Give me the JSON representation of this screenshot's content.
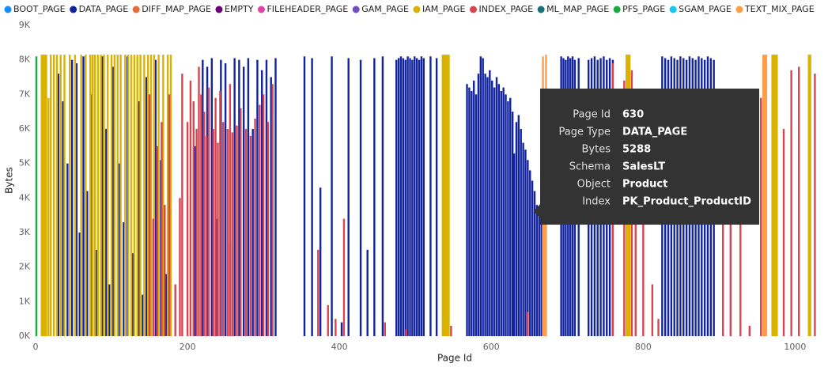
{
  "chart_data": {
    "type": "bar",
    "xlabel": "Page Id",
    "ylabel": "Bytes",
    "xlim": [
      0,
      1036
    ],
    "ylim": [
      0,
      9000
    ],
    "xticks": [
      0,
      200,
      400,
      600,
      800,
      1000
    ],
    "yticks": [
      {
        "value": 0,
        "label": "0K"
      },
      {
        "value": 1000,
        "label": "1K"
      },
      {
        "value": 2000,
        "label": "2K"
      },
      {
        "value": 3000,
        "label": "3K"
      },
      {
        "value": 4000,
        "label": "4K"
      },
      {
        "value": 5000,
        "label": "5K"
      },
      {
        "value": 6000,
        "label": "6K"
      },
      {
        "value": 7000,
        "label": "7K"
      },
      {
        "value": 8000,
        "label": "8K"
      },
      {
        "value": 9000,
        "label": "9K"
      }
    ],
    "grid": false,
    "series": [
      {
        "name": "BOOT_PAGE",
        "color": "#118DFF",
        "x": [],
        "values": []
      },
      {
        "name": "DATA_PAGE",
        "color": "#12239E",
        "x": [
          30,
          36,
          42,
          48,
          54,
          58,
          63,
          68,
          74,
          80,
          88,
          93,
          97,
          102,
          110,
          116,
          121,
          128,
          136,
          141,
          146,
          150,
          158,
          165,
          172,
          210,
          220,
          226,
          232,
          238,
          244,
          250,
          256,
          262,
          268,
          274,
          280,
          286,
          292,
          298,
          304,
          310,
          316,
          354,
          364,
          375,
          390,
          403,
          412,
          428,
          437,
          446,
          457,
          475,
          478,
          481,
          484,
          487,
          490,
          493,
          496,
          499,
          502,
          505,
          508,
          511,
          520,
          528,
          568,
          571,
          574,
          577,
          580,
          583,
          586,
          589,
          592,
          595,
          598,
          601,
          604,
          607,
          610,
          613,
          616,
          619,
          622,
          625,
          628,
          630,
          633,
          636,
          639,
          642,
          645,
          648,
          651,
          654,
          657,
          660,
          663,
          666,
          692,
          695,
          698,
          701,
          704,
          707,
          710,
          715,
          728,
          732,
          736,
          740,
          744,
          748,
          752,
          756,
          760,
          825,
          829,
          833,
          837,
          841,
          845,
          849,
          853,
          857,
          861,
          865,
          869,
          873,
          877,
          881,
          885,
          889,
          893
        ],
        "values": [
          7600,
          6800,
          5000,
          8000,
          7900,
          3000,
          8100,
          4200,
          7000,
          2500,
          8100,
          6000,
          1500,
          7800,
          5000,
          3300,
          8100,
          2400,
          6800,
          1200,
          7500,
          3900,
          8000,
          5100,
          1800,
          5500,
          8000,
          7800,
          8050,
          3400,
          8000,
          7900,
          2700,
          8050,
          8000,
          7800,
          8050,
          6000,
          8000,
          7700,
          8000,
          7500,
          8050,
          8100,
          8050,
          4300,
          8100,
          400,
          8050,
          8000,
          2500,
          8050,
          8100,
          8000,
          8050,
          8100,
          8050,
          8000,
          8100,
          8050,
          8000,
          8100,
          8050,
          8000,
          8100,
          8050,
          8100,
          8050,
          7300,
          7200,
          7100,
          7400,
          7000,
          7600,
          8100,
          8050,
          7600,
          7500,
          7700,
          7400,
          7200,
          7500,
          7300,
          7100,
          7200,
          7000,
          6800,
          6900,
          6500,
          5288,
          6200,
          6400,
          6000,
          5600,
          5400,
          5100,
          4800,
          4500,
          4200,
          3800,
          3600,
          3300,
          8100,
          8050,
          8000,
          8100,
          8050,
          8100,
          8000,
          8050,
          8000,
          8050,
          8100,
          8000,
          8050,
          8100,
          8000,
          8050,
          8000,
          8100,
          8050,
          8000,
          8100,
          8050,
          8000,
          8100,
          8050,
          8000,
          8100,
          8050,
          8000,
          8100,
          8050,
          8000,
          8100,
          8050,
          8000
        ]
      },
      {
        "name": "DIFF_MAP_PAGE",
        "color": "#E66C37",
        "x": [],
        "values": []
      },
      {
        "name": "EMPTY",
        "color": "#6B007B",
        "x": [],
        "values": []
      },
      {
        "name": "FILEHEADER_PAGE",
        "color": "#E044A7",
        "x": [],
        "values": []
      },
      {
        "name": "GAM_PAGE",
        "color": "#744EC2",
        "x": [],
        "values": []
      },
      {
        "name": "IAM_PAGE",
        "color": "#D9B300",
        "x": [
          8,
          10,
          12,
          14,
          17,
          20,
          24,
          28,
          33,
          38,
          45,
          52,
          60,
          66,
          72,
          75,
          78,
          82,
          86,
          90,
          95,
          100,
          104,
          108,
          112,
          118,
          122,
          126,
          130,
          134,
          138,
          143,
          148,
          152,
          156,
          162,
          168,
          174,
          178,
          536,
          538,
          540,
          542,
          544,
          778,
          780,
          782,
          970,
          972,
          974,
          976,
          1018,
          1020
        ],
        "values": [
          8150,
          8150,
          8150,
          8150,
          6900,
          8150,
          8150,
          8150,
          8150,
          8150,
          8150,
          8150,
          8150,
          8150,
          8150,
          8150,
          8150,
          8150,
          8150,
          8150,
          8150,
          8150,
          8150,
          8150,
          8150,
          8150,
          8150,
          8150,
          8150,
          8150,
          8150,
          8150,
          8150,
          8150,
          8150,
          8150,
          8150,
          8150,
          8150,
          8150,
          8150,
          8150,
          8150,
          8150,
          8150,
          8150,
          8150,
          8150,
          8150,
          8150,
          8150,
          8150,
          8150
        ]
      },
      {
        "name": "INDEX_PAGE",
        "color": "#D64550",
        "x": [
          150,
          155,
          160,
          166,
          170,
          176,
          184,
          190,
          193,
          200,
          204,
          208,
          212,
          215,
          218,
          222,
          225,
          228,
          234,
          237,
          240,
          243,
          247,
          253,
          256,
          259,
          265,
          270,
          277,
          283,
          289,
          295,
          300,
          306,
          312,
          372,
          385,
          395,
          406,
          460,
          488,
          547,
          648,
          760,
          775,
          785,
          790,
          800,
          812,
          820,
          905,
          915,
          928,
          940,
          955,
          985,
          995,
          1005,
          1026
        ],
        "values": [
          7000,
          3400,
          5500,
          6200,
          3800,
          7000,
          1500,
          4000,
          7600,
          6200,
          7400,
          6800,
          6000,
          7800,
          7000,
          6500,
          5800,
          7200,
          6000,
          6900,
          5600,
          7100,
          6200,
          6000,
          7300,
          5900,
          6100,
          6600,
          6000,
          5800,
          6300,
          6700,
          7000,
          6200,
          7300,
          2500,
          900,
          500,
          3400,
          400,
          200,
          300,
          700,
          7900,
          7400,
          7700,
          6500,
          6400,
          1500,
          500,
          3400,
          7000,
          6300,
          300,
          6900,
          6000,
          7700,
          7800,
          7600
        ]
      },
      {
        "name": "ML_MAP_PAGE",
        "color": "#197278",
        "x": [],
        "values": []
      },
      {
        "name": "PFS_PAGE",
        "color": "#1AAB40",
        "x": [
          1
        ],
        "values": [
          8100
        ]
      },
      {
        "name": "SGAM_PAGE",
        "color": "#15C6F4",
        "x": [],
        "values": []
      },
      {
        "name": "TEXT_MIX_PAGE",
        "color": "#FF9E4A",
        "x": [
          668,
          670,
          672,
          958,
          960,
          962
        ],
        "values": [
          8100,
          3500,
          8150,
          8150,
          8150,
          8150
        ]
      }
    ]
  },
  "tooltip": {
    "rows": [
      {
        "label": "Page Id",
        "value": 630
      },
      {
        "label": "Page Type",
        "value": "DATA_PAGE"
      },
      {
        "label": "Bytes",
        "value": 5288
      },
      {
        "label": "Schema",
        "value": "SalesLT"
      },
      {
        "label": "Object",
        "value": "Product"
      },
      {
        "label": "Index",
        "value": "PK_Product_ProductID"
      }
    ]
  }
}
